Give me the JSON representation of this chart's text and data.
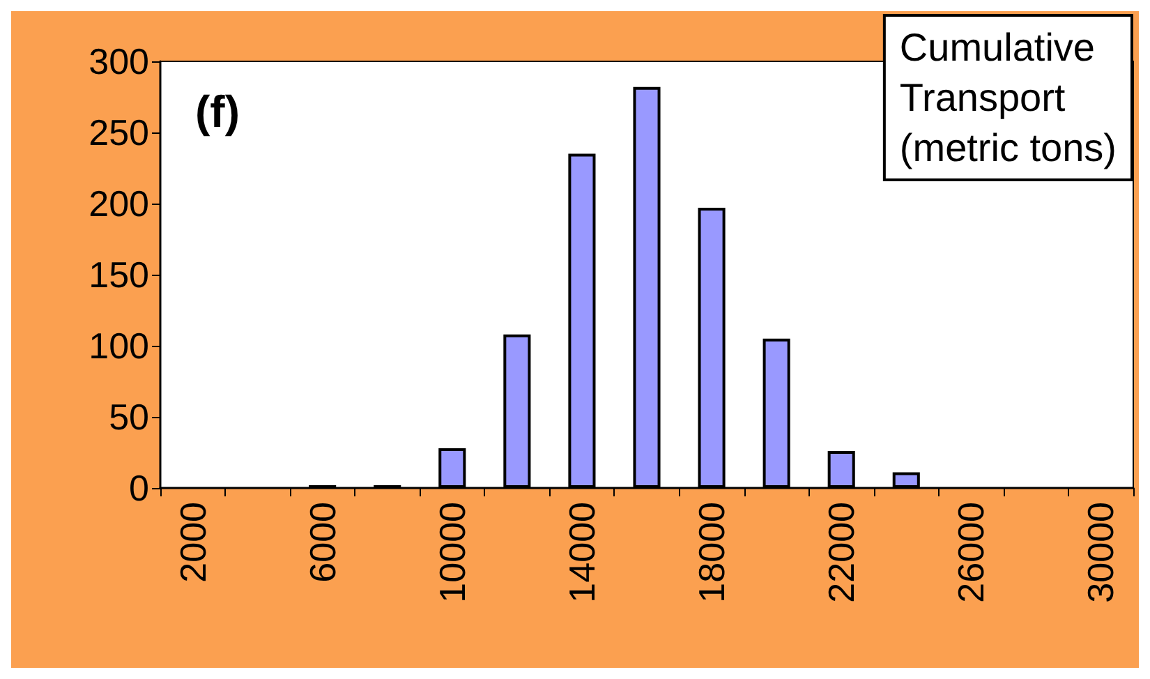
{
  "chart_data": {
    "type": "bar",
    "categories": [
      "2000",
      null,
      "6000",
      null,
      "10000",
      null,
      "14000",
      null,
      "18000",
      null,
      "22000",
      null,
      "26000",
      null,
      "30000"
    ],
    "values": [
      0,
      0,
      2,
      2,
      28,
      108,
      235,
      282,
      197,
      105,
      26,
      11,
      0,
      0,
      0
    ],
    "color": "#9999ff",
    "ylim": [
      0,
      300
    ],
    "yticks": [
      0,
      50,
      100,
      150,
      200,
      250,
      300
    ],
    "grid": false,
    "annotations": [
      "(f)",
      "Cumulative\nTransport\n(metric tons)"
    ]
  }
}
